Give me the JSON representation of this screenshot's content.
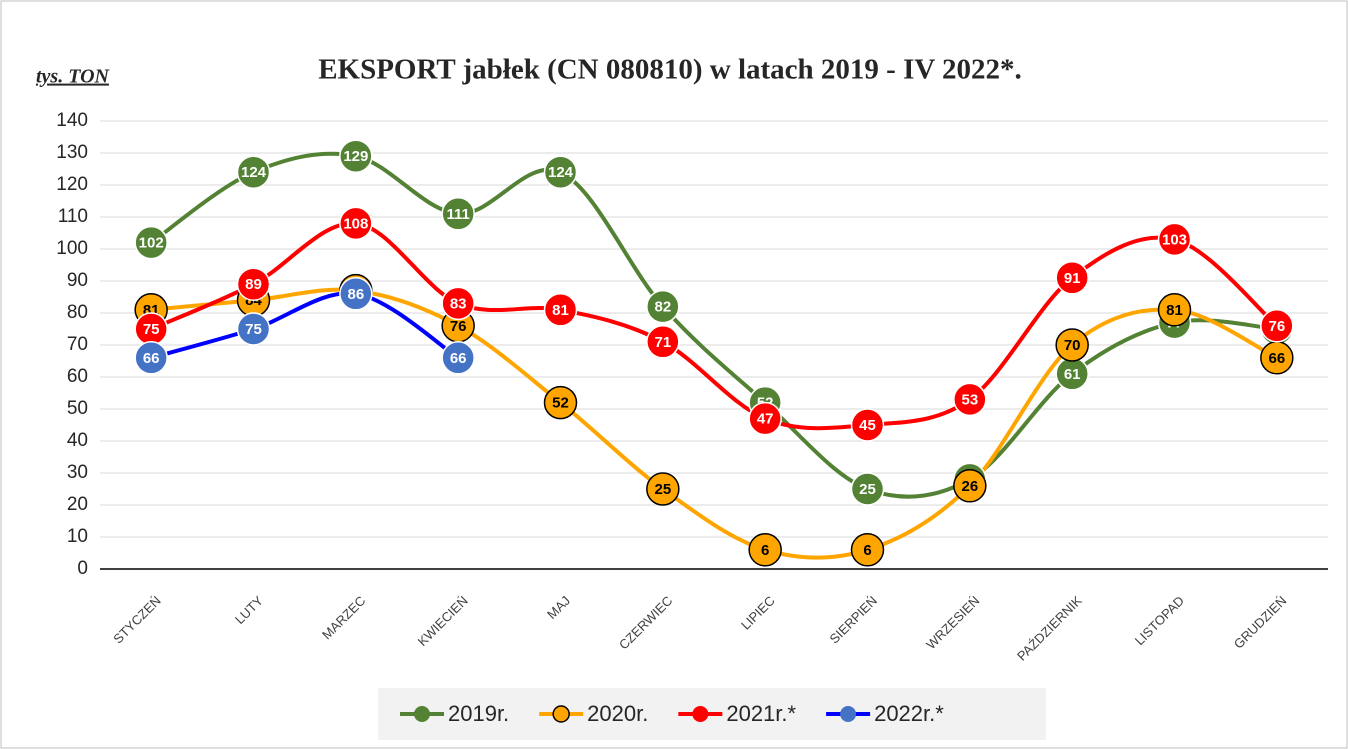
{
  "chart_data": {
    "type": "line",
    "title": "EKSPORT jabłek (CN 080810) w latach 2019 - IV 2022*.",
    "y_label": "tys. TON",
    "categories": [
      "STYCZEŃ",
      "LUTY",
      "MARZEC",
      "KWIECIEŃ",
      "MAJ",
      "CZERWIEC",
      "LIPIEC",
      "SIERPIEŃ",
      "WRZESIEŃ",
      "PAŹDZIERNIK",
      "LISTOPAD",
      "GRUDZIEŃ"
    ],
    "series": [
      {
        "name": "2019r.",
        "color": "#548235",
        "marker_edge_color": "#ffffff",
        "values": [
          102,
          124,
          129,
          111,
          124,
          82,
          52,
          25,
          28,
          61,
          77,
          75
        ]
      },
      {
        "name": "2020r.",
        "color": "#ffa500",
        "marker_edge_color": "#000000",
        "values": [
          81,
          84,
          87,
          76,
          52,
          25,
          6,
          6,
          26,
          70,
          81,
          66
        ]
      },
      {
        "name": "2021r.*",
        "color": "#ff0000",
        "marker_edge_color": "#ffffff",
        "values": [
          75,
          89,
          108,
          83,
          81,
          71,
          47,
          45,
          53,
          91,
          103,
          76
        ]
      },
      {
        "name": "2022r.*",
        "color": "#0000ff",
        "marker_color": "#4472c4",
        "marker_edge_color": "#ffffff",
        "values": [
          66,
          75,
          86,
          66,
          null,
          null,
          null,
          null,
          null,
          null,
          null,
          null
        ]
      }
    ],
    "ylim": [
      0,
      140
    ],
    "yticks": [
      0,
      10,
      20,
      30,
      40,
      50,
      60,
      70,
      80,
      90,
      100,
      110,
      120,
      130,
      140
    ],
    "grid": true,
    "legend": "bottom",
    "smooth": true
  }
}
